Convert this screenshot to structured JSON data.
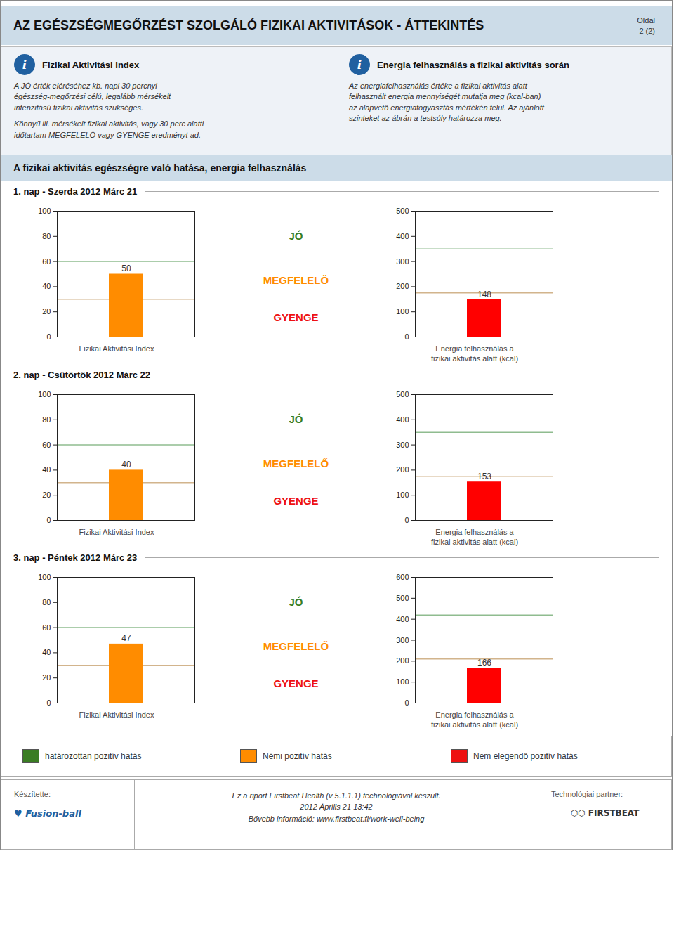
{
  "title": "AZ EGÉSZSÉGMEGŐRZÉST SZOLGÁLÓ FIZIKAI AKTIVITÁSOK - ÁTTEKINTÉS",
  "annotations": [
    "Oldal",
    "2 (2)"
  ],
  "info_boxes": [
    {
      "icon": "i",
      "title": "Fizikai Aktivitási Index",
      "texts": [
        "A JÓ érték eléréséhez kb. napi 30 percnyi\négészség-megőrzési célú, legalább mérsékelt\nintenzitású fizikai aktivitás szükséges.",
        "Könnyű ill. mérsékelt fizikai aktivitás, vagy 30 perc alatti\nidőtartam MEGFELELŐ vagy GYENGE eredményt ad."
      ]
    },
    {
      "icon": "i",
      "title": "Energia felhasználás a fizikai aktivitás során",
      "texts": [
        "Az energiafelhasználás értéke a fizikai aktivitás alatt\nfelhasznált energia mennyiségét mutatja meg (kcal-ban)\naz alapvető energiafogyasztás mértékén felül. Az ajánlott\nszinteket az ábrán a testsúly határozza meg."
      ]
    }
  ],
  "subtitle": "A fizikai aktivitás egészségre való hatása, energia felhasználás",
  "chart_data": [
    {
      "type": "bar",
      "day": "1. nap  - Szerda 2012 Márc 21",
      "xlabel": "Fizikai Aktivitási Index",
      "categories": [
        null
      ],
      "values": [
        50
      ],
      "color": "#FF8C00",
      "ylim": [
        0,
        100
      ],
      "yticks": [
        0,
        20,
        40,
        60,
        80,
        100
      ],
      "tick_labels": "y",
      "data_labels": true,
      "grid": false,
      "thresholds": [
        {
          "value": 60,
          "color": "#8fbc8f"
        },
        {
          "value": 30,
          "color": "#d2b48c"
        }
      ],
      "zones": [
        {
          "label": "JÓ",
          "color": "#3a7d23"
        },
        {
          "label": "MEGFELELŐ",
          "color": "#FF8C00"
        },
        {
          "label": "GYENGE",
          "color": "#EE1111"
        }
      ]
    },
    {
      "type": "bar",
      "day": "1. nap  - Szerda 2012 Márc 21",
      "xlabel": "Energia felhasználás a\nfizikai aktivitás alatt (kcal)",
      "categories": [
        null
      ],
      "values": [
        148
      ],
      "color": "#FF0000",
      "ylim": [
        0,
        500
      ],
      "yticks": [
        0,
        100,
        200,
        300,
        400,
        500
      ],
      "tick_labels": "y",
      "data_labels": true,
      "grid": false,
      "thresholds": [
        {
          "value": 350,
          "color": "#8fbc8f"
        },
        {
          "value": 175,
          "color": "#d2b48c"
        }
      ]
    },
    {
      "type": "bar",
      "day": "2. nap  - Csütörtök 2012 Márc 22",
      "xlabel": "Fizikai Aktivitási Index",
      "categories": [
        null
      ],
      "values": [
        40
      ],
      "color": "#FF8C00",
      "ylim": [
        0,
        100
      ],
      "yticks": [
        0,
        20,
        40,
        60,
        80,
        100
      ],
      "tick_labels": "y",
      "data_labels": true,
      "grid": false,
      "thresholds": [
        {
          "value": 60,
          "color": "#8fbc8f"
        },
        {
          "value": 30,
          "color": "#d2b48c"
        }
      ],
      "zones": [
        {
          "label": "JÓ",
          "color": "#3a7d23"
        },
        {
          "label": "MEGFELELŐ",
          "color": "#FF8C00"
        },
        {
          "label": "GYENGE",
          "color": "#EE1111"
        }
      ]
    },
    {
      "type": "bar",
      "day": "2. nap  - Csütörtök 2012 Márc 22",
      "xlabel": "Energia felhasználás a\nfizikai aktivitás alatt (kcal)",
      "categories": [
        null
      ],
      "values": [
        153
      ],
      "color": "#FF0000",
      "ylim": [
        0,
        500
      ],
      "yticks": [
        0,
        100,
        200,
        300,
        400,
        500
      ],
      "tick_labels": "y",
      "data_labels": true,
      "grid": false,
      "thresholds": [
        {
          "value": 350,
          "color": "#8fbc8f"
        },
        {
          "value": 175,
          "color": "#d2b48c"
        }
      ]
    },
    {
      "type": "bar",
      "day": "3. nap  - Péntek 2012 Márc 23",
      "xlabel": "Fizikai Aktivitási Index",
      "categories": [
        null
      ],
      "values": [
        47
      ],
      "color": "#FF8C00",
      "ylim": [
        0,
        100
      ],
      "yticks": [
        0,
        20,
        40,
        60,
        80,
        100
      ],
      "tick_labels": "y",
      "data_labels": true,
      "grid": false,
      "thresholds": [
        {
          "value": 60,
          "color": "#8fbc8f"
        },
        {
          "value": 30,
          "color": "#d2b48c"
        }
      ],
      "zones": [
        {
          "label": "JÓ",
          "color": "#3a7d23"
        },
        {
          "label": "MEGFELELŐ",
          "color": "#FF8C00"
        },
        {
          "label": "GYENGE",
          "color": "#EE1111"
        }
      ]
    },
    {
      "type": "bar",
      "day": "3. nap  - Péntek 2012 Márc 23",
      "xlabel": "Energia felhasználás a\nfizikai aktivitás alatt (kcal)",
      "categories": [
        null
      ],
      "values": [
        166
      ],
      "color": "#FF0000",
      "ylim": [
        0,
        600
      ],
      "yticks": [
        0,
        100,
        200,
        300,
        400,
        500,
        600
      ],
      "tick_labels": "y",
      "data_labels": true,
      "grid": false,
      "thresholds": [
        {
          "value": 420,
          "color": "#8fbc8f"
        },
        {
          "value": 210,
          "color": "#d2b48c"
        }
      ]
    }
  ],
  "legend_entries": [
    {
      "name": "határozottan pozitív hatás",
      "color": "#3a7d23"
    },
    {
      "name": "Némi pozitív hatás",
      "color": "#FF8C00"
    },
    {
      "name": "Nem elegendő pozitív hatás",
      "color": "#EE1111"
    }
  ],
  "footer": {
    "left_title": "Készítette:",
    "left_logo": "♥ Fusion-ball",
    "center": "Ez a riport Firstbeat Health (v 5.1.1.1) technológiával készült.\n2012 Április 21 13:42\nBővebb információ: www.firstbeat.fi/work-well-being",
    "right_title": "Technológiai partner:",
    "right_logo": "⬡⬡ FIRSTBEAT"
  }
}
